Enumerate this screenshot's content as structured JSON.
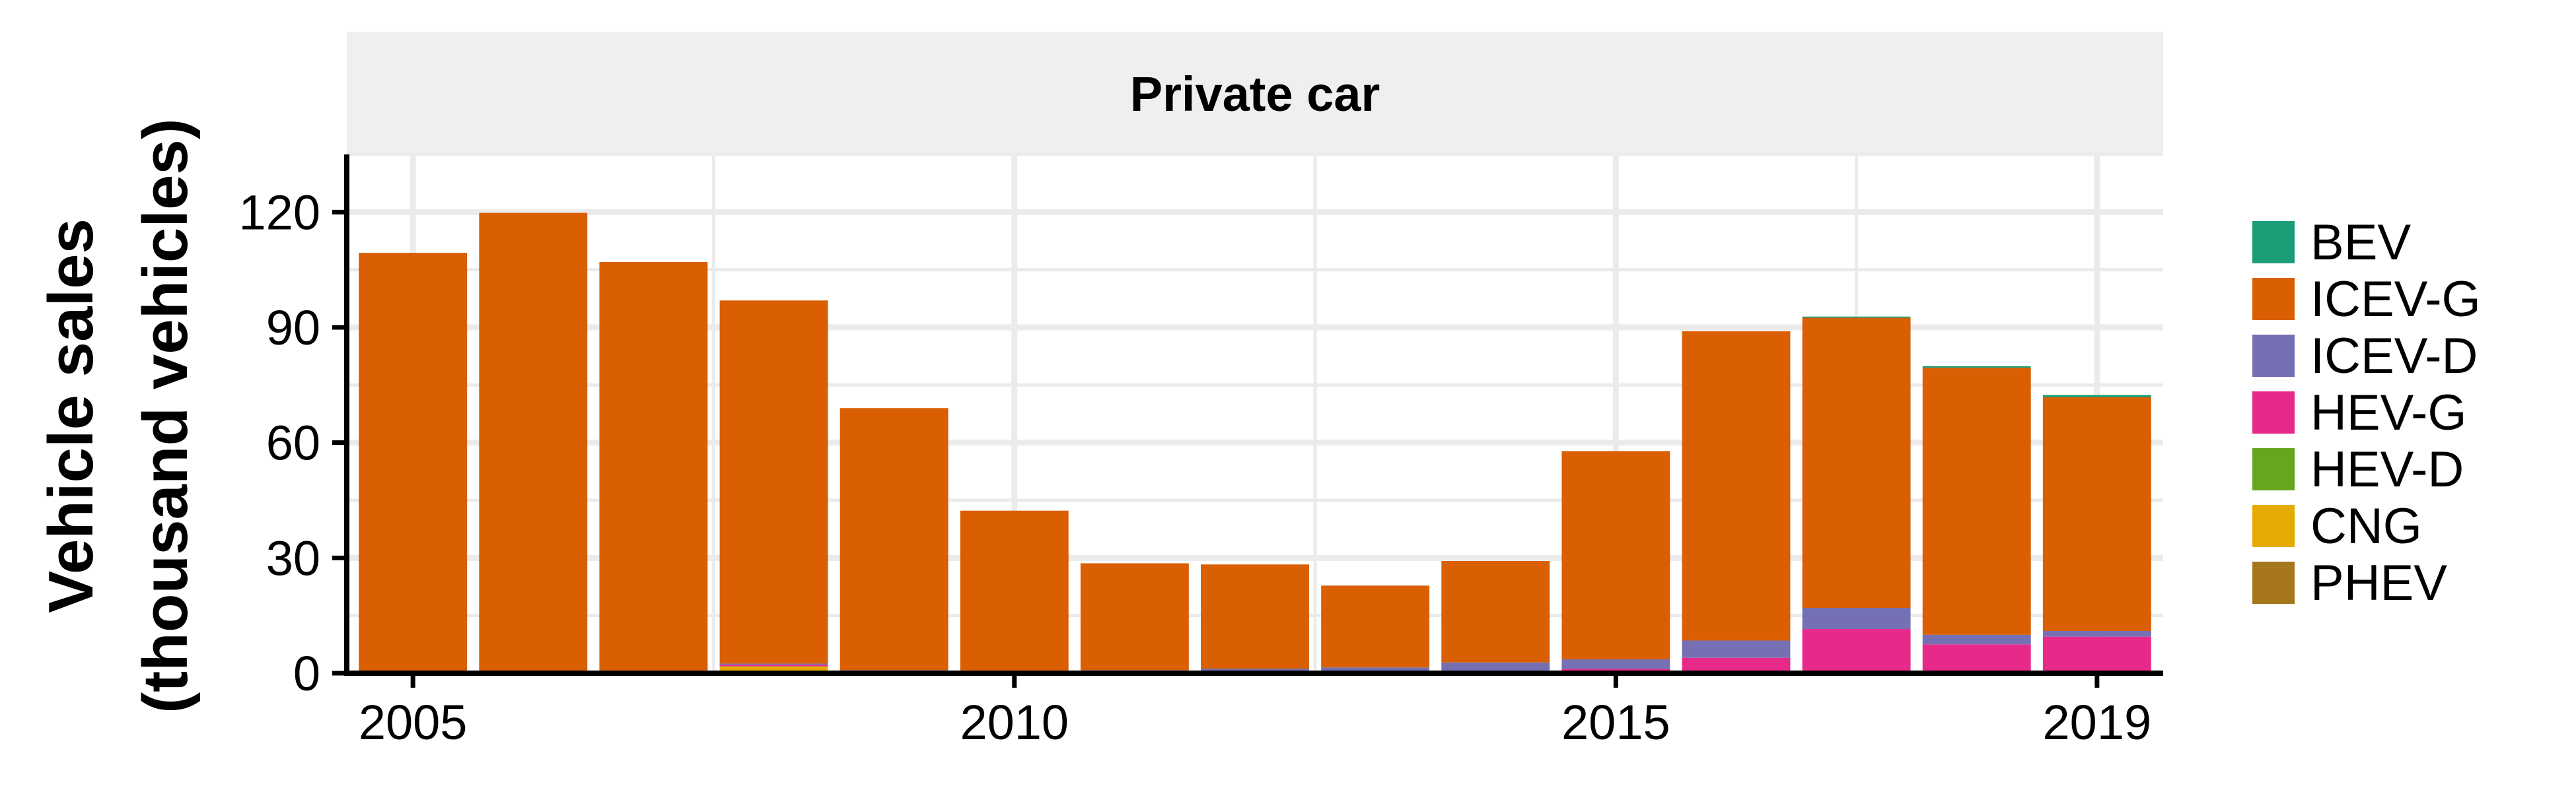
{
  "chart_data": {
    "type": "bar",
    "stacked": true,
    "facet_label": "Private car",
    "ylabel_line1": "Vehicle sales",
    "ylabel_line2": "(thousand vehicles)",
    "xlabel": "",
    "x": [
      2005,
      2006,
      2007,
      2008,
      2009,
      2010,
      2011,
      2012,
      2013,
      2014,
      2015,
      2016,
      2017,
      2018,
      2019
    ],
    "xticks": [
      2005,
      2010,
      2015,
      2019
    ],
    "yticks": [
      0,
      30,
      60,
      90,
      120
    ],
    "ylim": [
      0,
      135
    ],
    "grid": true,
    "legend_position": "right",
    "series": [
      {
        "name": "PHEV",
        "color": "#A6761D",
        "values": [
          0,
          0,
          0,
          0,
          0,
          0,
          0,
          0,
          0,
          0,
          0,
          0,
          0,
          0,
          0
        ]
      },
      {
        "name": "CNG",
        "color": "#E6AB02",
        "values": [
          0.3,
          0.3,
          0.2,
          1.8,
          0.2,
          0.2,
          0.1,
          0.1,
          0.1,
          0.1,
          0.1,
          0,
          0,
          0,
          0
        ]
      },
      {
        "name": "HEV-D",
        "color": "#66A61E",
        "values": [
          0,
          0,
          0,
          0,
          0,
          0,
          0,
          0,
          0,
          0,
          0,
          0,
          0,
          0,
          0
        ]
      },
      {
        "name": "HEV-G",
        "color": "#E7298A",
        "values": [
          0.2,
          0.2,
          0.5,
          0.4,
          0.4,
          0.3,
          0.4,
          0.4,
          0.3,
          0.6,
          1.0,
          4.0,
          11.5,
          7.5,
          9.5
        ]
      },
      {
        "name": "ICEV-D",
        "color": "#7570B3",
        "values": [
          0,
          0,
          0,
          0.3,
          0.2,
          0.2,
          0.3,
          0.7,
          1.1,
          2.1,
          2.5,
          4.5,
          5.5,
          2.5,
          1.5
        ]
      },
      {
        "name": "ICEV-G",
        "color": "#D95F02",
        "values": [
          108.9,
          119.3,
          106.3,
          94.5,
          68.2,
          41.6,
          27.8,
          27.1,
          21.3,
          26.4,
          54.2,
          80.5,
          75.5,
          69.5,
          60.8
        ]
      },
      {
        "name": "BEV",
        "color": "#1B9E77",
        "values": [
          0,
          0,
          0,
          0,
          0,
          0,
          0,
          0,
          0,
          0,
          0,
          0,
          0.3,
          0.4,
          0.6
        ]
      }
    ],
    "legend_order": [
      "BEV",
      "ICEV-G",
      "ICEV-D",
      "HEV-G",
      "HEV-D",
      "CNG",
      "PHEV"
    ]
  }
}
